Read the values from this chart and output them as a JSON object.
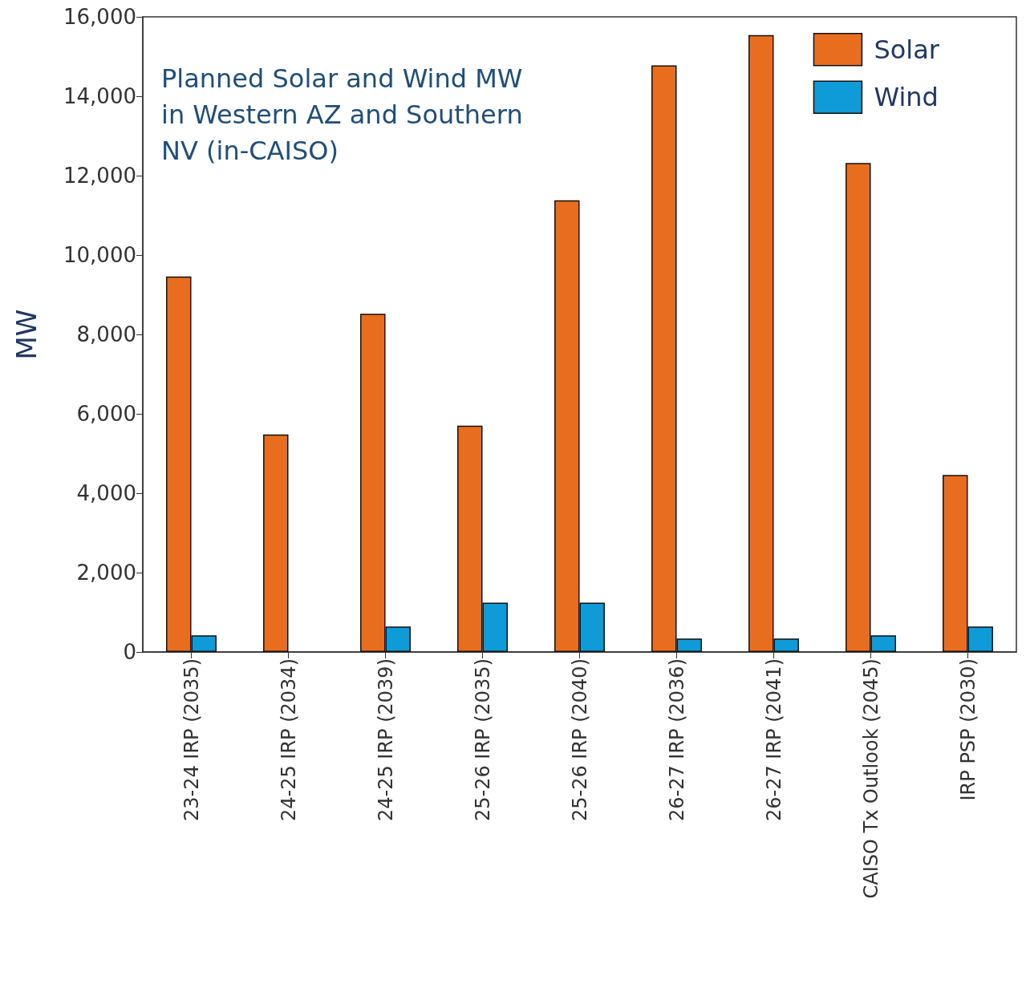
{
  "chart_data": {
    "type": "bar",
    "title": "Planned Solar and Wind MW in Western AZ and Southern NV (in-CAISO)",
    "ylabel": "MW",
    "categories": [
      "23-24 IRP (2035)",
      "24-25 IRP (2034)",
      "24-25 IRP (2039)",
      "25-26 IRP (2035)",
      "25-26 IRP (2040)",
      "26-27 IRP (2036)",
      "26-27 IRP (2041)",
      "CAISO Tx Outlook (2045)",
      "IRP PSP (2030)"
    ],
    "series": [
      {
        "name": "Solar",
        "color": "#e96d1f",
        "values": [
          9460,
          5480,
          8520,
          5700,
          11380,
          14780,
          15540,
          12320,
          4460
        ]
      },
      {
        "name": "Wind",
        "color": "#0f9bd7",
        "values": [
          420,
          0,
          640,
          1240,
          1240,
          340,
          340,
          420,
          640
        ]
      }
    ],
    "ylim": [
      0,
      16000
    ],
    "yticks": [
      0,
      {
        "value": 2000,
        "label": "2,000"
      },
      {
        "value": 4000,
        "label": "4,000"
      },
      {
        "value": 6000,
        "label": "6,000"
      },
      {
        "value": 8000,
        "label": "8,000"
      },
      {
        "value": 10000,
        "label": "10,000"
      },
      {
        "value": 12000,
        "label": "12,000"
      },
      {
        "value": 14000,
        "label": "14,000"
      },
      {
        "value": 16000,
        "label": "16,000"
      }
    ],
    "legend": "top right"
  }
}
